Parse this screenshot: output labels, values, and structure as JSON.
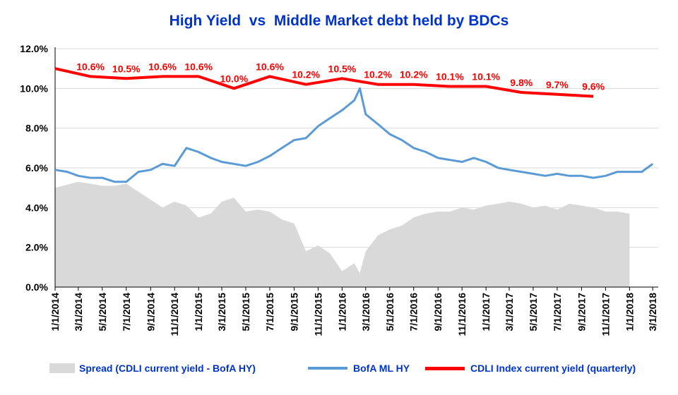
{
  "chart_data": {
    "type": "line",
    "title": "High Yield  vs  Middle Market debt held by BDCs",
    "ylim": [
      0,
      12
    ],
    "y_ticks": [
      "0.0%",
      "2.0%",
      "4.0%",
      "6.0%",
      "8.0%",
      "10.0%",
      "12.0%"
    ],
    "x_ticks": [
      "1/1/2014",
      "3/1/2014",
      "5/1/2014",
      "7/1/2014",
      "9/1/2014",
      "11/1/2014",
      "1/1/2015",
      "3/1/2015",
      "5/1/2015",
      "7/1/2015",
      "9/1/2015",
      "11/1/2015",
      "1/1/2016",
      "3/1/2016",
      "5/1/2016",
      "7/1/2016",
      "9/1/2016",
      "11/1/2016",
      "1/1/2017",
      "3/1/2017",
      "5/1/2017",
      "7/1/2017",
      "9/1/2017",
      "11/1/2017",
      "1/1/2018",
      "3/1/2018"
    ],
    "grid": "horizontal",
    "legend_position": "bottom",
    "series": [
      {
        "name": "Spread (CDLI current yield - BofA HY)",
        "kind": "area",
        "color": "#d9d9d9",
        "x": [
          "2014-01-01",
          "2014-03-01",
          "2014-04-01",
          "2014-05-01",
          "2014-06-01",
          "2014-07-01",
          "2014-08-01",
          "2014-09-01",
          "2014-10-01",
          "2014-11-01",
          "2014-12-01",
          "2015-01-01",
          "2015-02-01",
          "2015-03-01",
          "2015-04-01",
          "2015-05-01",
          "2015-06-01",
          "2015-07-01",
          "2015-08-01",
          "2015-09-01",
          "2015-10-01",
          "2015-11-01",
          "2015-12-01",
          "2016-01-01",
          "2016-02-01",
          "2016-02-15",
          "2016-03-01",
          "2016-04-01",
          "2016-05-01",
          "2016-06-01",
          "2016-07-01",
          "2016-08-01",
          "2016-09-01",
          "2016-10-01",
          "2016-11-01",
          "2016-12-01",
          "2017-01-01",
          "2017-02-01",
          "2017-03-01",
          "2017-04-01",
          "2017-05-01",
          "2017-06-01",
          "2017-07-01",
          "2017-08-01",
          "2017-09-01",
          "2017-10-01",
          "2017-11-01",
          "2017-12-01",
          "2018-01-01"
        ],
        "values": [
          5.0,
          5.3,
          5.2,
          5.1,
          5.1,
          5.2,
          4.8,
          4.4,
          4.0,
          4.3,
          4.1,
          3.5,
          3.7,
          4.3,
          4.5,
          3.8,
          3.9,
          3.8,
          3.4,
          3.2,
          1.8,
          2.1,
          1.7,
          0.8,
          1.2,
          0.7,
          1.8,
          2.6,
          2.9,
          3.1,
          3.5,
          3.7,
          3.8,
          3.8,
          4.0,
          3.9,
          4.1,
          4.2,
          4.3,
          4.2,
          4.0,
          4.1,
          3.9,
          4.2,
          4.1,
          4.0,
          3.8,
          3.8,
          3.7
        ]
      },
      {
        "name": "BofA ML HY",
        "kind": "line",
        "color": "#5b9bd5",
        "x": [
          "2014-01-01",
          "2014-02-01",
          "2014-03-01",
          "2014-04-01",
          "2014-05-01",
          "2014-06-01",
          "2014-07-01",
          "2014-08-01",
          "2014-09-01",
          "2014-10-01",
          "2014-11-01",
          "2014-12-01",
          "2015-01-01",
          "2015-02-01",
          "2015-03-01",
          "2015-04-01",
          "2015-05-01",
          "2015-06-01",
          "2015-07-01",
          "2015-08-01",
          "2015-09-01",
          "2015-10-01",
          "2015-11-01",
          "2015-12-01",
          "2016-01-01",
          "2016-02-01",
          "2016-02-15",
          "2016-03-01",
          "2016-04-01",
          "2016-05-01",
          "2016-06-01",
          "2016-07-01",
          "2016-08-01",
          "2016-09-01",
          "2016-10-01",
          "2016-11-01",
          "2016-12-01",
          "2017-01-01",
          "2017-02-01",
          "2017-03-01",
          "2017-04-01",
          "2017-05-01",
          "2017-06-01",
          "2017-07-01",
          "2017-08-01",
          "2017-09-01",
          "2017-10-01",
          "2017-11-01",
          "2017-12-01",
          "2018-01-01",
          "2018-02-01",
          "2018-03-01"
        ],
        "values": [
          5.9,
          5.8,
          5.6,
          5.5,
          5.5,
          5.3,
          5.3,
          5.8,
          5.9,
          6.2,
          6.1,
          7.0,
          6.8,
          6.5,
          6.3,
          6.2,
          6.1,
          6.3,
          6.6,
          7.0,
          7.4,
          7.5,
          8.1,
          8.5,
          8.9,
          9.4,
          10.0,
          8.7,
          8.2,
          7.7,
          7.4,
          7.0,
          6.8,
          6.5,
          6.4,
          6.3,
          6.5,
          6.3,
          6.0,
          5.9,
          5.8,
          5.7,
          5.6,
          5.7,
          5.6,
          5.6,
          5.5,
          5.6,
          5.8,
          5.8,
          5.8,
          6.2
        ]
      },
      {
        "name": "CDLI Index current yield (quarterly)",
        "kind": "line",
        "color": "#ff0000",
        "x": [
          "2014-01-01",
          "2014-04-01",
          "2014-07-01",
          "2014-10-01",
          "2015-01-01",
          "2015-04-01",
          "2015-07-01",
          "2015-10-01",
          "2016-01-01",
          "2016-04-01",
          "2016-07-01",
          "2016-10-01",
          "2017-01-01",
          "2017-04-01",
          "2017-07-01",
          "2017-10-01"
        ],
        "values": [
          11.0,
          10.6,
          10.5,
          10.6,
          10.6,
          10.0,
          10.6,
          10.2,
          10.5,
          10.2,
          10.2,
          10.1,
          10.1,
          9.8,
          9.7,
          9.6
        ],
        "labels": [
          "10.6%",
          "10.5%",
          "10.6%",
          "10.6%",
          "10.0%",
          "10.6%",
          "10.2%",
          "10.5%",
          "10.2%",
          "10.2%",
          "10.1%",
          "10.1%",
          "9.8%",
          "9.7%",
          "9.6%"
        ]
      }
    ]
  }
}
